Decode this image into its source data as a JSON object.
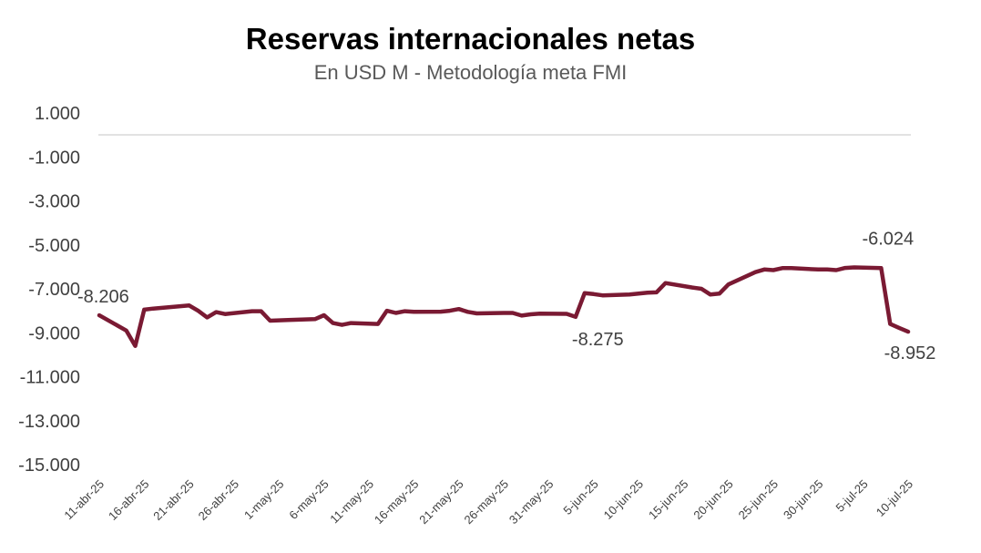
{
  "chart_data": {
    "type": "line",
    "title": "Reservas internacionales netas",
    "subtitle": "En USD M - Metodología meta FMI",
    "xlabel": "",
    "ylabel": "",
    "ylim": [
      -15000,
      1000
    ],
    "yticks": [
      1000,
      -1000,
      -3000,
      -5000,
      -7000,
      -9000,
      -11000,
      -13000,
      -15000
    ],
    "ytick_labels": [
      "1.000",
      "-1.000",
      "-3.000",
      "-5.000",
      "-7.000",
      "-9.000",
      "-11.000",
      "-13.000",
      "-15.000"
    ],
    "x_tick_labels": [
      "11-abr-25",
      "16-abr-25",
      "21-abr-25",
      "26-abr-25",
      "1-may-25",
      "6-may-25",
      "11-may-25",
      "16-may-25",
      "21-may-25",
      "26-may-25",
      "31-may-25",
      "5-jun-25",
      "10-jun-25",
      "15-jun-25",
      "20-jun-25",
      "25-jun-25",
      "30-jun-25",
      "5-jul-25",
      "10-jul-25"
    ],
    "grid": false,
    "line_color": "#7a1a33",
    "series": [
      {
        "x": [
          "2025-04-11",
          "2025-04-14",
          "2025-04-15",
          "2025-04-16",
          "2025-04-17",
          "2025-04-21",
          "2025-04-22",
          "2025-04-23",
          "2025-04-24",
          "2025-04-25",
          "2025-04-28",
          "2025-04-29",
          "2025-04-30",
          "2025-05-02",
          "2025-05-05",
          "2025-05-06",
          "2025-05-07",
          "2025-05-08",
          "2025-05-09",
          "2025-05-12",
          "2025-05-13",
          "2025-05-14",
          "2025-05-15",
          "2025-05-16",
          "2025-05-19",
          "2025-05-20",
          "2025-05-21",
          "2025-05-22",
          "2025-05-23",
          "2025-05-26",
          "2025-05-27",
          "2025-05-28",
          "2025-05-29",
          "2025-05-30",
          "2025-06-02",
          "2025-06-03",
          "2025-06-04",
          "2025-06-05",
          "2025-06-06",
          "2025-06-09",
          "2025-06-10",
          "2025-06-11",
          "2025-06-12",
          "2025-06-13",
          "2025-06-16",
          "2025-06-17",
          "2025-06-18",
          "2025-06-19",
          "2025-06-20",
          "2025-06-23",
          "2025-06-24",
          "2025-06-25",
          "2025-06-26",
          "2025-06-27",
          "2025-06-30",
          "2025-07-01",
          "2025-07-02",
          "2025-07-03",
          "2025-07-04",
          "2025-07-07",
          "2025-07-08",
          "2025-07-09",
          "2025-07-10"
        ],
        "values": [
          -8206,
          -8900,
          -9600,
          -7950,
          -7900,
          -7760,
          -8000,
          -8300,
          -8060,
          -8150,
          -8020,
          -8020,
          -8450,
          -8420,
          -8380,
          -8200,
          -8560,
          -8640,
          -8560,
          -8600,
          -8000,
          -8100,
          -8020,
          -8050,
          -8040,
          -8000,
          -7920,
          -8050,
          -8120,
          -8100,
          -8100,
          -8220,
          -8160,
          -8130,
          -8140,
          -8275,
          -7200,
          -7240,
          -7300,
          -7260,
          -7220,
          -7180,
          -7160,
          -6740,
          -6940,
          -7000,
          -7260,
          -7220,
          -6800,
          -6240,
          -6120,
          -6150,
          -6060,
          -6060,
          -6120,
          -6120,
          -6150,
          -6050,
          -6024,
          -6060,
          -8600,
          -8780,
          -8952
        ]
      }
    ],
    "data_labels": [
      {
        "x": "2025-04-11",
        "value": -8206,
        "text": "-8.206"
      },
      {
        "x": "2025-06-03",
        "value": -8275,
        "text": "-8.275"
      },
      {
        "x": "2025-07-04",
        "value": -6024,
        "text": "-6.024"
      },
      {
        "x": "2025-07-10",
        "value": -8952,
        "text": "-8.952"
      }
    ]
  }
}
